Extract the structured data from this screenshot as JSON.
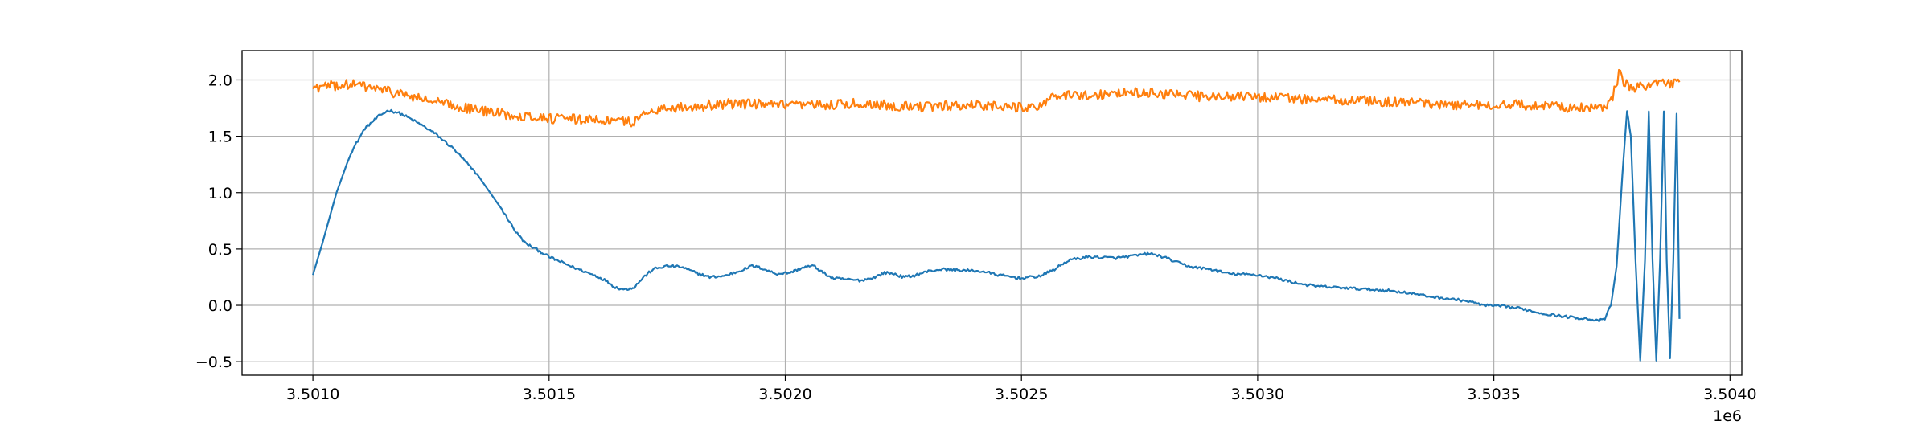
{
  "chart_data": {
    "type": "line",
    "title": "",
    "xlabel": "",
    "ylabel": "",
    "x_offset_label": "1e6",
    "xlim": [
      3500850,
      3504025
    ],
    "ylim": [
      -0.62,
      2.26
    ],
    "grid": true,
    "legend": "none",
    "x_ticks": [
      {
        "value": 3501000,
        "label": "3.5010"
      },
      {
        "value": 3501500,
        "label": "3.5015"
      },
      {
        "value": 3502000,
        "label": "3.5020"
      },
      {
        "value": 3502500,
        "label": "3.5025"
      },
      {
        "value": 3503000,
        "label": "3.5030"
      },
      {
        "value": 3503500,
        "label": "3.5035"
      },
      {
        "value": 3504000,
        "label": "3.5040"
      }
    ],
    "y_ticks": [
      {
        "value": -0.5,
        "label": "−0.5"
      },
      {
        "value": 0.0,
        "label": "0.0"
      },
      {
        "value": 0.5,
        "label": "0.5"
      },
      {
        "value": 1.0,
        "label": "1.0"
      },
      {
        "value": 1.5,
        "label": "1.5"
      },
      {
        "value": 2.0,
        "label": "2.0"
      }
    ],
    "series": [
      {
        "color": "#1f77b4",
        "noise": 0.012,
        "points": [
          [
            3501000,
            0.27
          ],
          [
            3501020,
            0.55
          ],
          [
            3501050,
            1.0
          ],
          [
            3501080,
            1.35
          ],
          [
            3501110,
            1.57
          ],
          [
            3501140,
            1.68
          ],
          [
            3501160,
            1.73
          ],
          [
            3501180,
            1.71
          ],
          [
            3501200,
            1.67
          ],
          [
            3501230,
            1.6
          ],
          [
            3501260,
            1.52
          ],
          [
            3501300,
            1.38
          ],
          [
            3501350,
            1.15
          ],
          [
            3501400,
            0.85
          ],
          [
            3501430,
            0.65
          ],
          [
            3501450,
            0.55
          ],
          [
            3501480,
            0.48
          ],
          [
            3501500,
            0.43
          ],
          [
            3501550,
            0.34
          ],
          [
            3501600,
            0.26
          ],
          [
            3501620,
            0.22
          ],
          [
            3501640,
            0.16
          ],
          [
            3501660,
            0.14
          ],
          [
            3501680,
            0.16
          ],
          [
            3501700,
            0.25
          ],
          [
            3501720,
            0.32
          ],
          [
            3501750,
            0.35
          ],
          [
            3501780,
            0.34
          ],
          [
            3501810,
            0.29
          ],
          [
            3501840,
            0.25
          ],
          [
            3501870,
            0.26
          ],
          [
            3501900,
            0.3
          ],
          [
            3501930,
            0.35
          ],
          [
            3501950,
            0.33
          ],
          [
            3501980,
            0.28
          ],
          [
            3502010,
            0.29
          ],
          [
            3502040,
            0.34
          ],
          [
            3502060,
            0.35
          ],
          [
            3502080,
            0.29
          ],
          [
            3502100,
            0.24
          ],
          [
            3502130,
            0.23
          ],
          [
            3502160,
            0.22
          ],
          [
            3502190,
            0.25
          ],
          [
            3502210,
            0.29
          ],
          [
            3502230,
            0.28
          ],
          [
            3502250,
            0.25
          ],
          [
            3502270,
            0.26
          ],
          [
            3502300,
            0.3
          ],
          [
            3502330,
            0.32
          ],
          [
            3502380,
            0.31
          ],
          [
            3502420,
            0.3
          ],
          [
            3502450,
            0.27
          ],
          [
            3502500,
            0.24
          ],
          [
            3502540,
            0.26
          ],
          [
            3502570,
            0.32
          ],
          [
            3502600,
            0.4
          ],
          [
            3502640,
            0.43
          ],
          [
            3502700,
            0.42
          ],
          [
            3502740,
            0.44
          ],
          [
            3502770,
            0.46
          ],
          [
            3502800,
            0.43
          ],
          [
            3502830,
            0.38
          ],
          [
            3502860,
            0.34
          ],
          [
            3502900,
            0.32
          ],
          [
            3502940,
            0.28
          ],
          [
            3503000,
            0.27
          ],
          [
            3503040,
            0.24
          ],
          [
            3503080,
            0.2
          ],
          [
            3503120,
            0.17
          ],
          [
            3503200,
            0.15
          ],
          [
            3503280,
            0.13
          ],
          [
            3503320,
            0.11
          ],
          [
            3503360,
            0.08
          ],
          [
            3503400,
            0.06
          ],
          [
            3503440,
            0.04
          ],
          [
            3503480,
            0.0
          ],
          [
            3503520,
            -0.01
          ],
          [
            3503560,
            -0.03
          ],
          [
            3503600,
            -0.07
          ],
          [
            3503650,
            -0.1
          ],
          [
            3503700,
            -0.12
          ],
          [
            3503720,
            -0.14
          ],
          [
            3503735,
            -0.12
          ],
          [
            3503748,
            0.0
          ],
          [
            3503760,
            0.35
          ],
          [
            3503772,
            1.15
          ],
          [
            3503782,
            1.73
          ],
          [
            3503790,
            1.5
          ],
          [
            3503800,
            0.4
          ],
          [
            3503810,
            -0.49
          ],
          [
            3503820,
            0.4
          ],
          [
            3503828,
            1.72
          ],
          [
            3503836,
            0.4
          ],
          [
            3503844,
            -0.49
          ],
          [
            3503852,
            0.4
          ],
          [
            3503860,
            1.72
          ],
          [
            3503866,
            0.4
          ],
          [
            3503873,
            -0.47
          ],
          [
            3503880,
            0.4
          ],
          [
            3503887,
            1.7
          ],
          [
            3503893,
            -0.12
          ]
        ]
      },
      {
        "color": "#ff7f0e",
        "noise": 0.045,
        "points": [
          [
            3501000,
            1.93
          ],
          [
            3501050,
            1.95
          ],
          [
            3501080,
            1.96
          ],
          [
            3501100,
            1.95
          ],
          [
            3501150,
            1.91
          ],
          [
            3501200,
            1.86
          ],
          [
            3501250,
            1.81
          ],
          [
            3501300,
            1.77
          ],
          [
            3501350,
            1.73
          ],
          [
            3501400,
            1.7
          ],
          [
            3501450,
            1.68
          ],
          [
            3501500,
            1.66
          ],
          [
            3501550,
            1.65
          ],
          [
            3501600,
            1.65
          ],
          [
            3501650,
            1.63
          ],
          [
            3501680,
            1.63
          ],
          [
            3501700,
            1.69
          ],
          [
            3501720,
            1.74
          ],
          [
            3501800,
            1.76
          ],
          [
            3501850,
            1.78
          ],
          [
            3501900,
            1.79
          ],
          [
            3501950,
            1.78
          ],
          [
            3502000,
            1.77
          ],
          [
            3502050,
            1.77
          ],
          [
            3502100,
            1.78
          ],
          [
            3502150,
            1.79
          ],
          [
            3502200,
            1.78
          ],
          [
            3502250,
            1.77
          ],
          [
            3502300,
            1.76
          ],
          [
            3502350,
            1.77
          ],
          [
            3502400,
            1.78
          ],
          [
            3502450,
            1.77
          ],
          [
            3502500,
            1.75
          ],
          [
            3502530,
            1.77
          ],
          [
            3502560,
            1.83
          ],
          [
            3502600,
            1.86
          ],
          [
            3502650,
            1.87
          ],
          [
            3502700,
            1.88
          ],
          [
            3502750,
            1.89
          ],
          [
            3502800,
            1.88
          ],
          [
            3502850,
            1.86
          ],
          [
            3502900,
            1.85
          ],
          [
            3502950,
            1.85
          ],
          [
            3503000,
            1.85
          ],
          [
            3503050,
            1.84
          ],
          [
            3503100,
            1.83
          ],
          [
            3503150,
            1.82
          ],
          [
            3503200,
            1.82
          ],
          [
            3503250,
            1.81
          ],
          [
            3503300,
            1.8
          ],
          [
            3503350,
            1.79
          ],
          [
            3503400,
            1.78
          ],
          [
            3503450,
            1.78
          ],
          [
            3503500,
            1.78
          ],
          [
            3503550,
            1.78
          ],
          [
            3503600,
            1.77
          ],
          [
            3503650,
            1.76
          ],
          [
            3503700,
            1.75
          ],
          [
            3503730,
            1.74
          ],
          [
            3503745,
            1.78
          ],
          [
            3503755,
            1.9
          ],
          [
            3503768,
            2.1
          ],
          [
            3503775,
            1.98
          ],
          [
            3503790,
            1.92
          ],
          [
            3503810,
            1.95
          ],
          [
            3503840,
            1.96
          ],
          [
            3503870,
            1.96
          ],
          [
            3503893,
            1.98
          ]
        ]
      }
    ]
  }
}
